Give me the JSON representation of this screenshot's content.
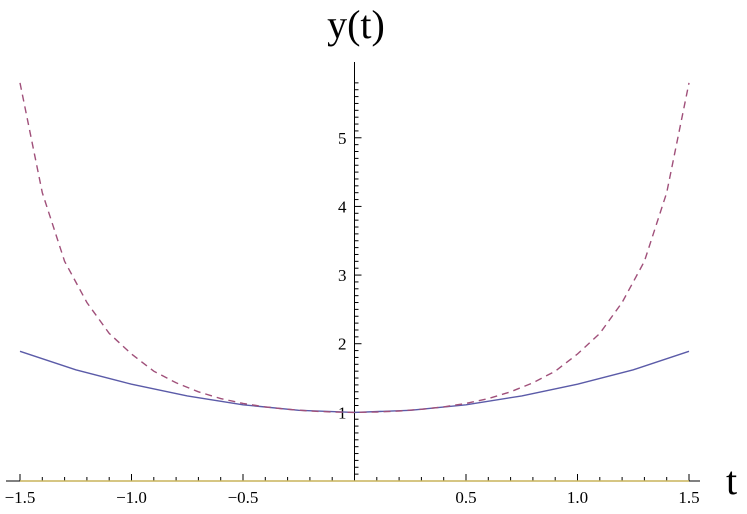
{
  "chart_data": {
    "type": "line",
    "title": "",
    "xlabel": "t",
    "ylabel": "y(t)",
    "xlim": [
      -1.5,
      1.5
    ],
    "ylim": [
      0,
      5.9
    ],
    "x_ticks": [
      {
        "value": -1.5,
        "label": "−1.5"
      },
      {
        "value": -1.0,
        "label": "−1.0"
      },
      {
        "value": -0.5,
        "label": "−0.5"
      },
      {
        "value": 0.5,
        "label": "0.5"
      },
      {
        "value": 1.0,
        "label": "1.0"
      },
      {
        "value": 1.5,
        "label": "1.5"
      }
    ],
    "y_ticks": [
      {
        "value": 1,
        "label": "1"
      },
      {
        "value": 2,
        "label": "2"
      },
      {
        "value": 3,
        "label": "3"
      },
      {
        "value": 4,
        "label": "4"
      },
      {
        "value": 5,
        "label": "5"
      }
    ],
    "grid": false,
    "series": [
      {
        "style": "solid",
        "color": "#5b5ba8",
        "x": [
          -1.5,
          -1.25,
          -1.0,
          -0.75,
          -0.5,
          -0.25,
          0,
          0.25,
          0.5,
          0.75,
          1.0,
          1.25,
          1.5
        ],
        "values": [
          1.89,
          1.62,
          1.41,
          1.24,
          1.11,
          1.03,
          1.0,
          1.03,
          1.11,
          1.24,
          1.41,
          1.62,
          1.89
        ]
      },
      {
        "style": "dashed",
        "color": "#a0507a",
        "x": [
          -1.5,
          -1.4,
          -1.3,
          -1.2,
          -1.1,
          -1.0,
          -0.9,
          -0.8,
          -0.7,
          -0.6,
          -0.5,
          -0.4,
          -0.3,
          -0.2,
          -0.1,
          0,
          0.1,
          0.2,
          0.3,
          0.4,
          0.5,
          0.6,
          0.7,
          0.8,
          0.9,
          1.0,
          1.1,
          1.2,
          1.3,
          1.4,
          1.5
        ],
        "values": [
          5.8,
          4.2,
          3.2,
          2.6,
          2.15,
          1.85,
          1.6,
          1.43,
          1.3,
          1.2,
          1.13,
          1.08,
          1.045,
          1.02,
          1.005,
          1.0,
          1.005,
          1.02,
          1.045,
          1.08,
          1.13,
          1.2,
          1.3,
          1.43,
          1.6,
          1.85,
          2.15,
          2.6,
          3.2,
          4.2,
          5.8
        ]
      },
      {
        "style": "solid",
        "color": "#c8b45a",
        "x": [
          -1.5,
          1.5
        ],
        "values": [
          0,
          0
        ]
      }
    ]
  }
}
